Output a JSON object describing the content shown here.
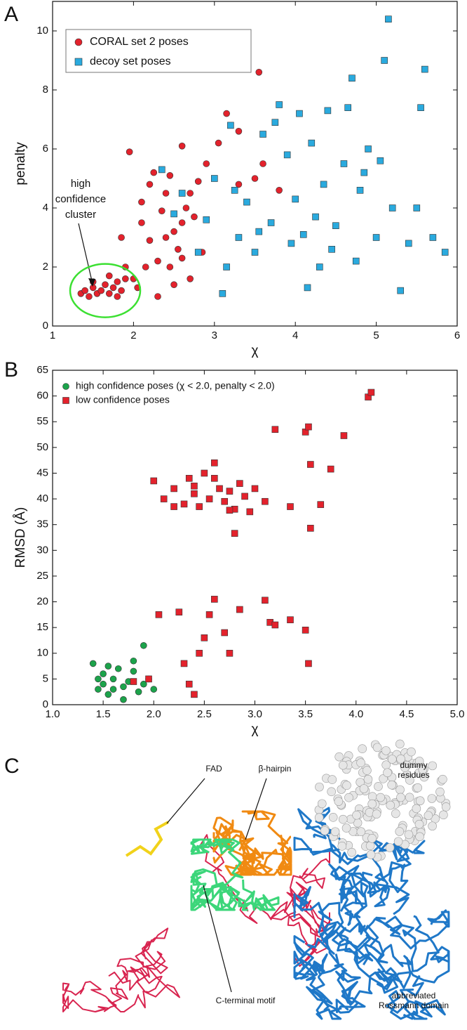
{
  "panels": [
    "A",
    "B",
    "C"
  ],
  "chart_data": [
    {
      "type": "scatter",
      "xlabel": "χ",
      "ylabel": "penalty",
      "xlim": [
        1,
        6
      ],
      "ylim": [
        0,
        11
      ],
      "xticks": [
        1,
        2,
        3,
        4,
        5,
        6
      ],
      "yticks": [
        0,
        2,
        4,
        6,
        8,
        10
      ],
      "annotation": [
        "high",
        "confidence",
        "cluster"
      ],
      "series": [
        {
          "name": "CORAL set 2 poses",
          "color": "#e3222c",
          "marker": "circle",
          "x": [
            1.35,
            1.4,
            1.45,
            1.5,
            1.55,
            1.6,
            1.65,
            1.7,
            1.75,
            1.8,
            1.85,
            1.9,
            1.5,
            1.7,
            1.9,
            1.8,
            2.0,
            2.05,
            1.85,
            1.95,
            2.1,
            2.2,
            2.3,
            2.35,
            2.4,
            2.45,
            2.5,
            2.55,
            2.6,
            2.65,
            2.7,
            2.75,
            2.8,
            2.85,
            2.9,
            2.3,
            2.5,
            2.2,
            2.4,
            2.6,
            3.05,
            3.15,
            3.3,
            3.5,
            3.55,
            3.6,
            3.8,
            3.3,
            2.1,
            2.25,
            2.7,
            2.15,
            2.45,
            2.6
          ],
          "values": [
            1.1,
            1.2,
            1.0,
            1.3,
            1.1,
            1.2,
            1.4,
            1.1,
            1.3,
            1.5,
            1.2,
            1.6,
            1.5,
            1.7,
            2.0,
            1.0,
            1.6,
            1.3,
            3.0,
            5.9,
            3.5,
            4.8,
            2.2,
            3.9,
            4.5,
            5.1,
            3.2,
            2.6,
            6.1,
            4.0,
            1.6,
            3.7,
            4.9,
            2.5,
            5.5,
            1.0,
            1.4,
            2.9,
            3.0,
            3.5,
            6.2,
            7.2,
            4.8,
            5.0,
            8.6,
            5.5,
            4.6,
            6.6,
            4.2,
            5.2,
            4.5,
            2.0,
            2.0,
            2.3
          ]
        },
        {
          "name": "decoy set poses",
          "color": "#2aaade",
          "marker": "square",
          "x": [
            2.35,
            2.5,
            2.6,
            2.8,
            2.9,
            3.0,
            3.1,
            3.15,
            3.2,
            3.3,
            3.4,
            3.5,
            3.6,
            3.7,
            3.8,
            3.9,
            3.95,
            4.0,
            4.05,
            4.1,
            4.15,
            4.2,
            4.3,
            4.35,
            4.4,
            4.5,
            4.6,
            4.65,
            4.7,
            4.75,
            4.8,
            4.9,
            5.0,
            5.1,
            5.15,
            5.2,
            5.3,
            5.4,
            5.5,
            5.55,
            5.6,
            5.7,
            5.85,
            3.25,
            3.55,
            3.75,
            4.25,
            4.45,
            4.85,
            5.05
          ],
          "values": [
            5.3,
            3.8,
            4.5,
            2.5,
            3.6,
            5.0,
            1.1,
            2.0,
            6.8,
            3.0,
            4.2,
            2.5,
            6.5,
            3.5,
            7.5,
            5.8,
            2.8,
            4.3,
            7.2,
            3.1,
            1.3,
            6.2,
            2.0,
            4.8,
            7.3,
            3.4,
            5.5,
            7.4,
            8.4,
            2.2,
            4.6,
            6.0,
            3.0,
            9.0,
            10.4,
            4.0,
            1.2,
            2.8,
            4.0,
            7.4,
            8.7,
            3.0,
            2.5,
            4.6,
            3.2,
            6.9,
            3.7,
            2.6,
            5.2,
            5.6
          ]
        }
      ]
    },
    {
      "type": "scatter",
      "xlabel": "χ",
      "ylabel": "RMSD (Å)",
      "xlim": [
        1,
        5
      ],
      "ylim": [
        0,
        65
      ],
      "xticks": [
        {
          "value": 1,
          "label": "1.0"
        },
        {
          "value": 1.5,
          "label": "1.5"
        },
        {
          "value": 2,
          "label": "2.0"
        },
        {
          "value": 2.5,
          "label": "2.5"
        },
        {
          "value": 3,
          "label": "3.0"
        },
        {
          "value": 3.5,
          "label": "3.5"
        },
        {
          "value": 4,
          "label": "4.0"
        },
        {
          "value": 4.5,
          "label": "4.5"
        },
        {
          "value": 5,
          "label": "5.0"
        }
      ],
      "yticks": [
        0,
        5,
        10,
        15,
        20,
        25,
        30,
        35,
        40,
        45,
        50,
        55,
        60,
        65
      ],
      "series": [
        {
          "name": "high confidence poses (χ < 2.0, penalty < 2.0)",
          "color": "#1ca34b",
          "marker": "circle",
          "x": [
            1.4,
            1.45,
            1.5,
            1.55,
            1.6,
            1.65,
            1.7,
            1.75,
            1.8,
            1.85,
            1.9,
            1.95,
            2.0,
            1.45,
            1.55,
            1.7,
            1.8,
            1.9,
            1.6,
            1.5
          ],
          "values": [
            8,
            3,
            6,
            2,
            5,
            7,
            3.5,
            4.5,
            6.5,
            2.5,
            11.5,
            5,
            3,
            5,
            7.5,
            1,
            8.5,
            4,
            3,
            4
          ]
        },
        {
          "name": "low confidence poses",
          "color": "#e3222c",
          "marker": "square",
          "x": [
            1.8,
            1.95,
            2.05,
            2.25,
            2.3,
            2.35,
            2.4,
            2.45,
            2.5,
            2.55,
            2.6,
            2.7,
            2.75,
            2.85,
            3.1,
            3.15,
            3.2,
            3.35,
            3.5,
            3.53,
            2.0,
            2.1,
            2.2,
            2.3,
            2.35,
            2.4,
            2.45,
            2.5,
            2.55,
            2.6,
            2.65,
            2.7,
            2.75,
            2.8,
            2.85,
            2.9,
            2.95,
            3.0,
            3.1,
            3.2,
            3.35,
            3.5,
            3.53,
            3.55,
            3.55,
            3.65,
            3.75,
            3.88,
            2.8,
            4.12,
            4.15,
            2.2,
            2.4,
            2.6,
            2.75
          ],
          "values": [
            4.5,
            5,
            17.5,
            18,
            8,
            4,
            2,
            10,
            13,
            17.5,
            20.5,
            14,
            10,
            18.5,
            20.3,
            16,
            15.5,
            16.5,
            14.5,
            8,
            43.5,
            40,
            42,
            39,
            44,
            41,
            38.5,
            45,
            40,
            47,
            42,
            39.5,
            41.5,
            38,
            43,
            40.5,
            37.5,
            42,
            39.5,
            53.5,
            38.5,
            53,
            54,
            46.7,
            34.3,
            38.9,
            45.8,
            52.3,
            33.3,
            59.8,
            60.7,
            38.5,
            42.5,
            44,
            37.8
          ]
        }
      ]
    }
  ],
  "diagram": {
    "labels": [
      [
        "FAD"
      ],
      [
        "β-hairpin"
      ],
      [
        "dummy",
        "residues"
      ],
      [
        "C-terminal motif"
      ],
      [
        "abbreviated",
        "Rossmann domain"
      ]
    ]
  }
}
